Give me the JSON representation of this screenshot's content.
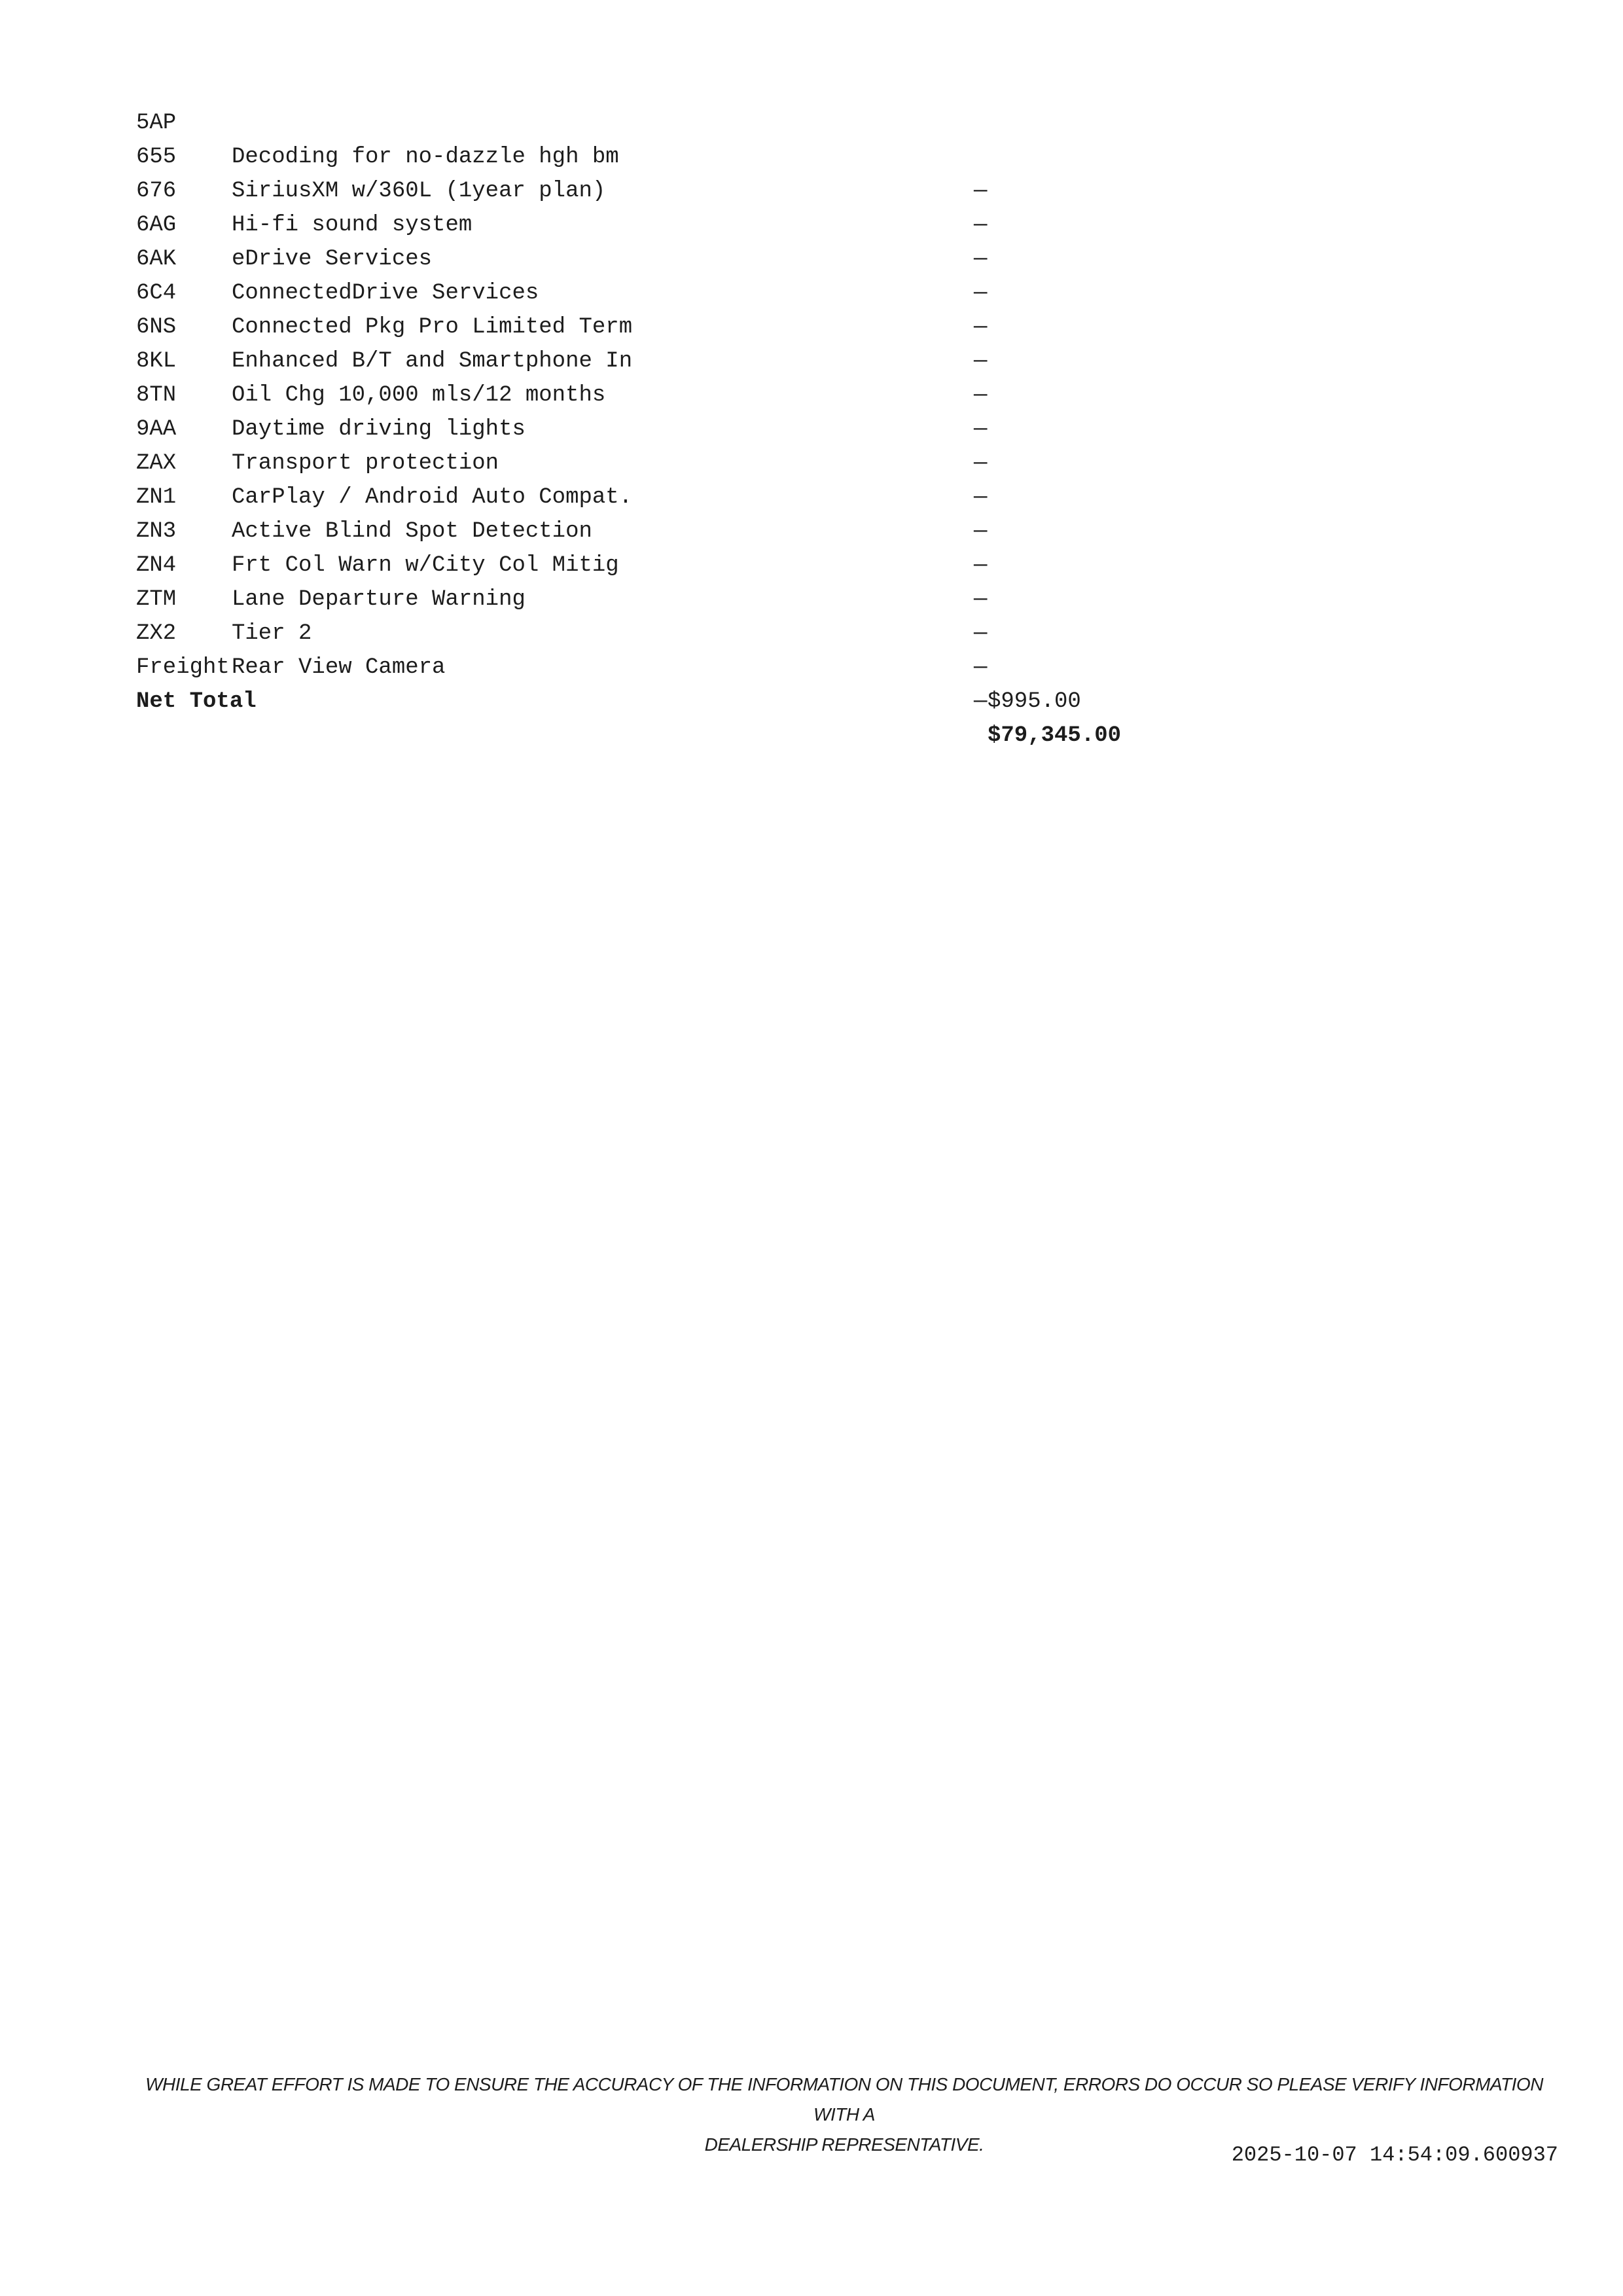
{
  "colors": {
    "background": "#ffffff",
    "text": "#1c1c1c"
  },
  "rows": [
    {
      "code": "5AP",
      "description": "Decoding for no-dazzle hgh bm",
      "value": "—"
    },
    {
      "code": "655",
      "description": "SiriusXM w/360L (1year plan)",
      "value": "—"
    },
    {
      "code": "676",
      "description": "Hi-fi sound system",
      "value": "—"
    },
    {
      "code": "6AG",
      "description": "eDrive Services",
      "value": "—"
    },
    {
      "code": "6AK",
      "description": "ConnectedDrive Services",
      "value": "—"
    },
    {
      "code": "6C4",
      "description": "Connected Pkg Pro Limited Term",
      "value": "—"
    },
    {
      "code": "6NS",
      "description": "Enhanced B/T and Smartphone In",
      "value": "—"
    },
    {
      "code": "8KL",
      "description": "Oil Chg 10,000 mls/12 months",
      "value": "—"
    },
    {
      "code": "8TN",
      "description": "Daytime driving lights",
      "value": "—"
    },
    {
      "code": "9AA",
      "description": "Transport protection",
      "value": "—"
    },
    {
      "code": "ZAX",
      "description": "CarPlay / Android Auto Compat.",
      "value": "—"
    },
    {
      "code": "ZN1",
      "description": "Active Blind Spot Detection",
      "value": "—"
    },
    {
      "code": "ZN3",
      "description": "Frt Col Warn w/City Col Mitig",
      "value": "—"
    },
    {
      "code": "ZN4",
      "description": "Lane Departure Warning",
      "value": "—"
    },
    {
      "code": "ZTM",
      "description": "Tier 2",
      "value": "—"
    },
    {
      "code": "ZX2",
      "description": "Rear View Camera",
      "value": "—"
    }
  ],
  "totals": [
    {
      "label": "Freight",
      "value": "$995.00"
    },
    {
      "label": "Net Total",
      "value": "$79,345.00"
    }
  ],
  "footer": {
    "disclaimer_line1": "WHILE GREAT EFFORT IS MADE TO ENSURE THE ACCURACY OF THE INFORMATION ON THIS DOCUMENT, ERRORS DO OCCUR SO PLEASE VERIFY INFORMATION WITH A",
    "disclaimer_line2": "DEALERSHIP REPRESENTATIVE.",
    "timestamp": "2025-10-07 14:54:09.600937"
  }
}
